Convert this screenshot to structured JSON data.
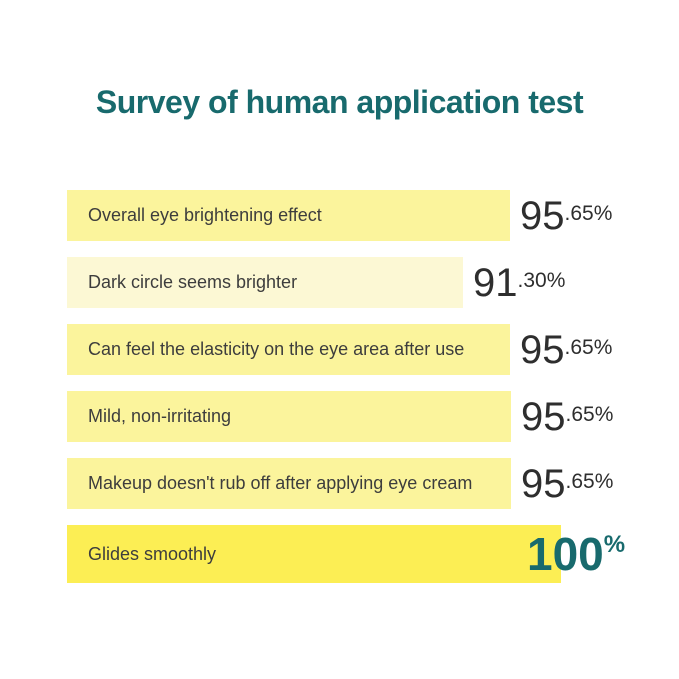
{
  "title": "Survey of human application test",
  "colors": {
    "title_teal": "#186a6d",
    "value_dark": "#2e2e2e",
    "label_dark": "#3d3d3d",
    "bar_yellow": "#fbf49c",
    "bar_pale_yellow": "#fcf8d4",
    "bar_bright_yellow": "#fcee54"
  },
  "rows": [
    {
      "label": "Overall eye brightening effect",
      "value": 95.65,
      "value_int": "95",
      "value_frac": ".65%",
      "bar_style": "width:443px;background:#fbf49c"
    },
    {
      "label": "Dark circle seems brighter",
      "value": 91.3,
      "value_int": "91",
      "value_frac": ".30%",
      "bar_style": "width:396px;background:#fcf8d4"
    },
    {
      "label": "Can feel the elasticity on the eye area after use",
      "value": 95.65,
      "value_int": "95",
      "value_frac": ".65%",
      "bar_style": "width:443px;background:#fbf49c"
    },
    {
      "label": "Mild, non-irritating",
      "value": 95.65,
      "value_int": "95",
      "value_frac": ".65%",
      "bar_style": "width:444px;background:#fbf49c"
    },
    {
      "label": "Makeup doesn't rub off after applying eye cream",
      "value": 95.65,
      "value_int": "95",
      "value_frac": ".65%",
      "bar_style": "width:444px;background:#fbf49c"
    },
    {
      "label": "Glides smoothly",
      "value": 100,
      "value_int": "100",
      "value_frac": "%",
      "bar_style": "width:494px;background:#fcee54;height:58px"
    }
  ],
  "chart_data": {
    "type": "bar",
    "orientation": "horizontal",
    "title": "Survey of human application test",
    "categories": [
      "Overall eye brightening effect",
      "Dark circle seems brighter",
      "Can feel the elasticity on the eye area after use",
      "Mild, non-irritating",
      "Makeup doesn't rub off after applying eye cream",
      "Glides smoothly"
    ],
    "values": [
      95.65,
      91.3,
      95.65,
      95.65,
      95.65,
      100
    ],
    "unit": "%",
    "xlabel": "",
    "ylabel": "",
    "xlim": [
      0,
      100
    ],
    "grid": false,
    "legend": false,
    "value_labels_shown": true,
    "highlighted_category": "Glides smoothly"
  }
}
